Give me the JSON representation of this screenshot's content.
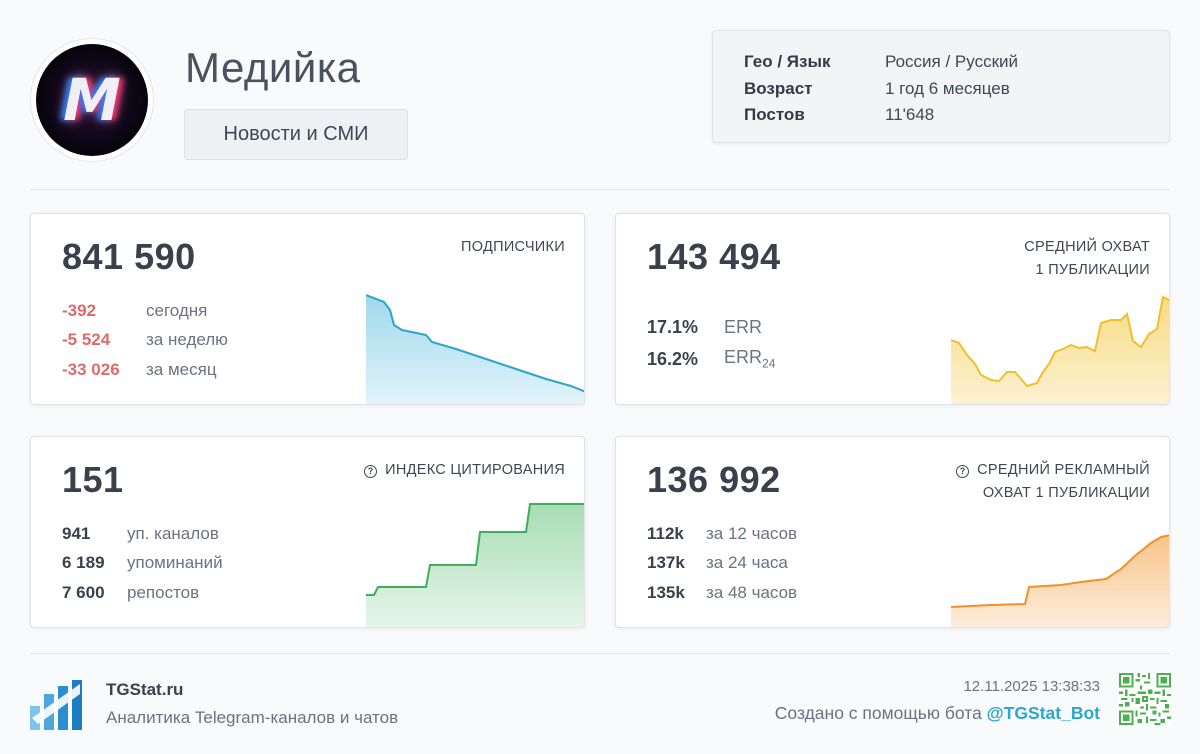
{
  "channel": {
    "avatar_letter": "M",
    "title": "Медийка",
    "category": "Новости и СМИ"
  },
  "info": [
    {
      "key": "Гео / Язык",
      "value": "Россия / Русский"
    },
    {
      "key": "Возраст",
      "value": "1 год 6 месяцев"
    },
    {
      "key": "Постов",
      "value": "11'648"
    }
  ],
  "subscribers": {
    "value": "841 590",
    "label": "ПОДПИСЧИКИ",
    "rows": [
      {
        "value": "-392",
        "label": "сегодня"
      },
      {
        "value": "-5 524",
        "label": "за неделю"
      },
      {
        "value": "-33 026",
        "label": "за месяц"
      }
    ],
    "color": "#2ba6c8"
  },
  "reach": {
    "value": "143 494",
    "label_line1": "СРЕДНИЙ ОХВАТ",
    "label_line2": "1 ПУБЛИКАЦИИ",
    "rows": [
      {
        "value": "17.1%",
        "label": "ERR",
        "sub": ""
      },
      {
        "value": "16.2%",
        "label": "ERR",
        "sub": "24"
      }
    ],
    "color": "#f0c02a"
  },
  "citation": {
    "value": "151",
    "label": "ИНДЕКС ЦИТИРОВАНИЯ",
    "rows": [
      {
        "value": "941",
        "label": "уп. каналов"
      },
      {
        "value": "6 189",
        "label": "упоминаний"
      },
      {
        "value": "7 600",
        "label": "репостов"
      }
    ],
    "color": "#3dae5a"
  },
  "ad_reach": {
    "value": "136 992",
    "label_line1": "СРЕДНИЙ РЕКЛАМНЫЙ",
    "label_line2": "ОХВАТ 1 ПУБЛИКАЦИИ",
    "rows": [
      {
        "value": "112k",
        "label": "за 12 часов"
      },
      {
        "value": "137k",
        "label": "за 24 часа"
      },
      {
        "value": "135k",
        "label": "за 48 часов"
      }
    ],
    "color": "#f0922a"
  },
  "footer": {
    "brand": "TGStat.ru",
    "subtitle": "Аналитика Telegram-каналов и чатов",
    "date": "12.11.2025 13:38:33",
    "created_prefix": "Создано с помощью бота ",
    "bot": "@TGStat_Bot"
  },
  "icons": {
    "help": "question-circle-icon",
    "logo": "tgstat-logo-icon",
    "qr": "qr-code-icon"
  }
}
